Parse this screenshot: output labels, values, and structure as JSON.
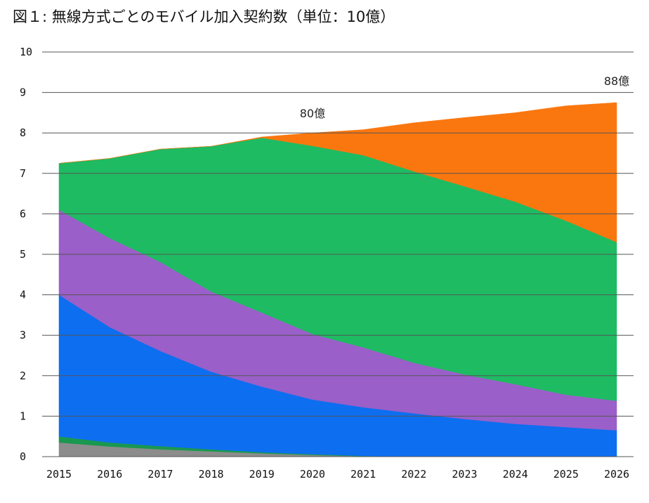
{
  "chart_data": {
    "type": "area",
    "stacked": true,
    "title": "図１: 無線方式ごとのモバイル加入契約数（単位：10億）",
    "xlabel": "",
    "ylabel": "",
    "ylim": [
      0,
      10
    ],
    "yticks": [
      0,
      1,
      2,
      3,
      4,
      5,
      6,
      7,
      8,
      9,
      10
    ],
    "x": [
      "2015",
      "2016",
      "2017",
      "2018",
      "2019",
      "2020",
      "2021",
      "2022",
      "2023",
      "2024",
      "2025",
      "2026"
    ],
    "grid": true,
    "series": [
      {
        "color": "#8c8c8c",
        "values": [
          0.35,
          0.25,
          0.18,
          0.13,
          0.08,
          0.04,
          0.01,
          0.0,
          0.0,
          0.0,
          0.0,
          0.0
        ]
      },
      {
        "color": "#1a9850",
        "values": [
          0.15,
          0.1,
          0.08,
          0.05,
          0.03,
          0.02,
          0.01,
          0.0,
          0.0,
          0.0,
          0.0,
          0.0
        ]
      },
      {
        "color": "#0d6ef0",
        "values": [
          3.5,
          2.85,
          2.35,
          1.92,
          1.62,
          1.35,
          1.2,
          1.07,
          0.93,
          0.81,
          0.73,
          0.65
        ]
      },
      {
        "color": "#9a5fc8",
        "values": [
          2.1,
          2.2,
          2.2,
          1.98,
          1.83,
          1.62,
          1.48,
          1.25,
          1.1,
          0.98,
          0.8,
          0.73
        ]
      },
      {
        "color": "#1ebb62",
        "values": [
          1.15,
          1.97,
          2.79,
          3.59,
          4.32,
          4.65,
          4.75,
          4.73,
          4.65,
          4.51,
          4.3,
          3.92
        ]
      },
      {
        "color": "#fa770f",
        "values": [
          0.0,
          0.0,
          0.0,
          0.0,
          0.02,
          0.32,
          0.63,
          1.2,
          1.7,
          2.2,
          2.84,
          3.45
        ]
      }
    ],
    "annotations": [
      {
        "text": "80億",
        "x": "2020",
        "y": 8.0
      },
      {
        "text": "88億",
        "x": "2026",
        "y": 8.8
      }
    ]
  }
}
